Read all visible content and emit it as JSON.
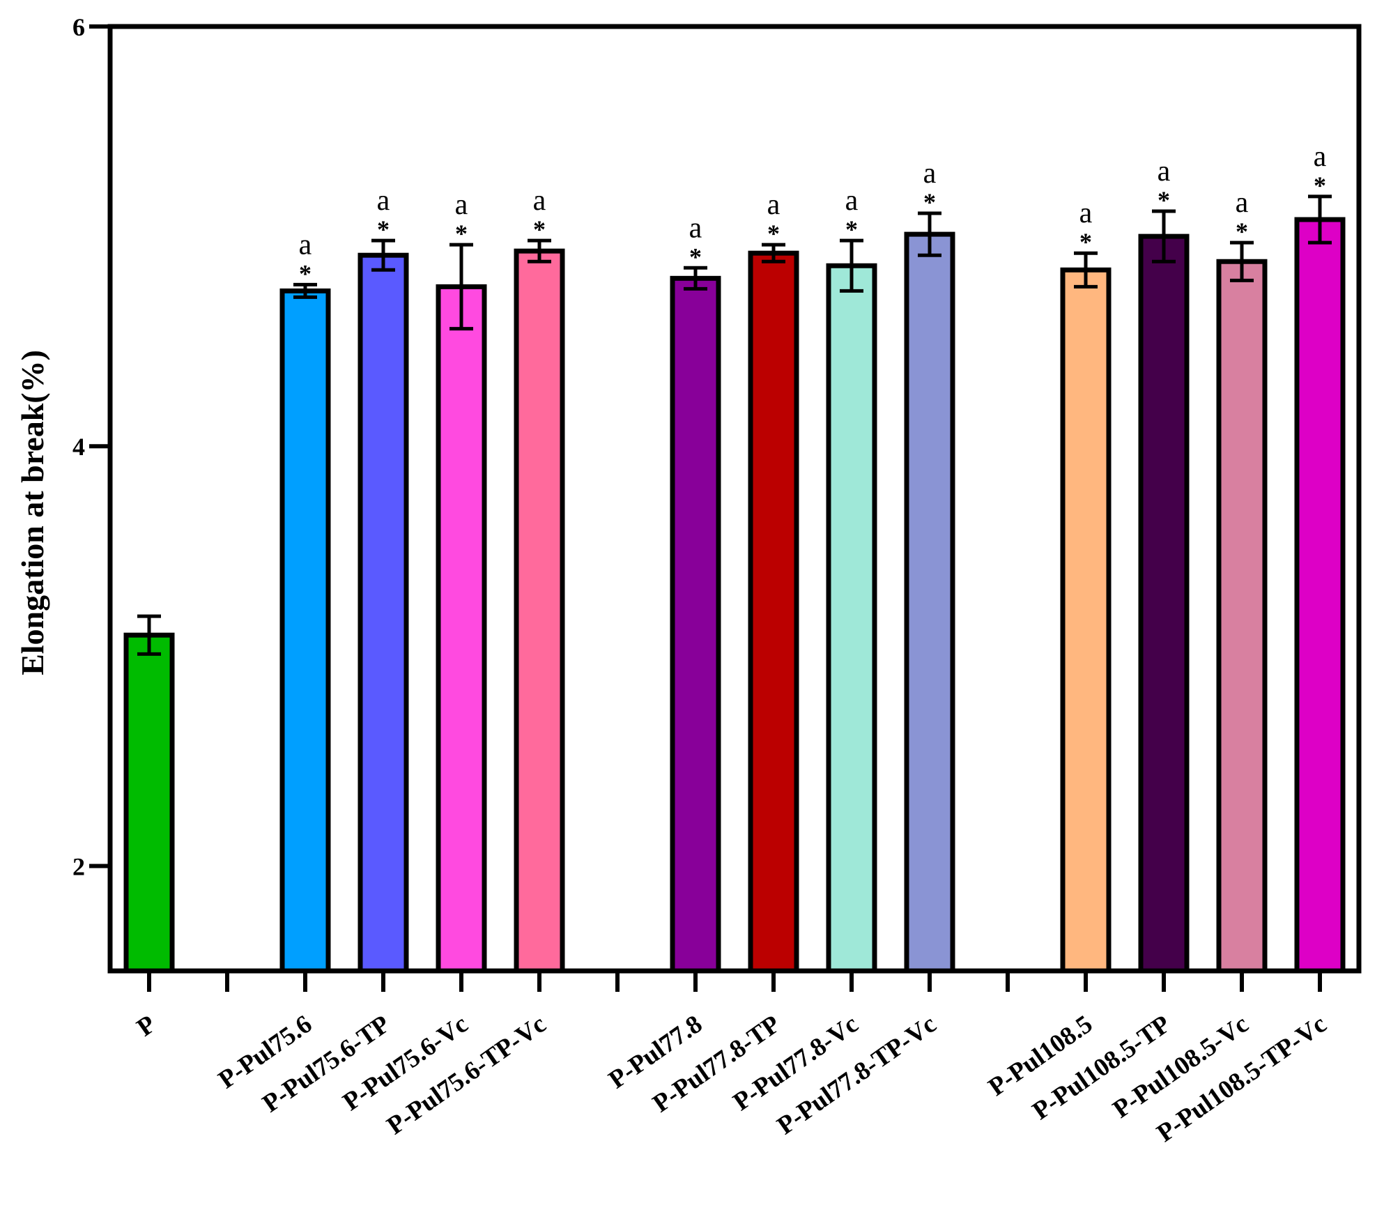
{
  "chart_data": {
    "type": "bar",
    "title": "",
    "xlabel": "",
    "ylabel": "Elongation at break(%)",
    "ylim": [
      1.5,
      6
    ],
    "yticks": [
      2,
      4,
      6
    ],
    "grid": false,
    "legend": "none",
    "categories": [
      "P",
      "",
      "P-Pul75.6",
      "P-Pul75.6-TP",
      "P-Pul75.6-Vc",
      "P-Pul75.6-TP-Vc",
      "",
      "P-Pul77.8",
      "P-Pul77.8-TP",
      "P-Pul77.8-Vc",
      "P-Pul77.8-TP-Vc",
      "",
      "P-Pul108.5",
      "P-Pul108.5-TP",
      "P-Pul108.5-Vc",
      "P-Pul108.5-TP-Vc"
    ],
    "values": [
      3.1,
      null,
      4.74,
      4.91,
      4.76,
      4.93,
      null,
      4.8,
      4.92,
      4.86,
      5.01,
      null,
      4.84,
      5.0,
      4.88,
      5.08
    ],
    "errors": [
      0.09,
      null,
      0.03,
      0.07,
      0.2,
      0.05,
      null,
      0.05,
      0.04,
      0.12,
      0.1,
      null,
      0.08,
      0.12,
      0.09,
      0.11
    ],
    "colors": [
      "#00bb00",
      null,
      "#009fff",
      "#5a5aff",
      "#ff4ae0",
      "#ff6a9c",
      null,
      "#880099",
      "#bb0000",
      "#9fe8d8",
      "#8a94d4",
      null,
      "#ffb77f",
      "#44004a",
      "#d880a0",
      "#dd00c6"
    ],
    "star_annotations": [
      "",
      "",
      "*",
      "*",
      "*",
      "*",
      "",
      "*",
      "*",
      "*",
      "*",
      "",
      "*",
      "*",
      "*",
      "*"
    ],
    "letter_annotations": [
      "",
      "",
      "a",
      "a",
      "a",
      "a",
      "",
      "a",
      "a",
      "a",
      "a",
      "",
      "a",
      "a",
      "a",
      "a"
    ]
  }
}
